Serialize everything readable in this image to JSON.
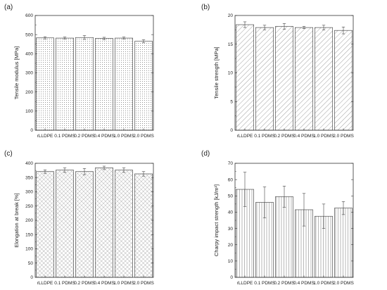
{
  "chart_data": [
    {
      "panel_label": "(a)",
      "type": "bar",
      "categories": [
        "rLLDPE",
        "0.1 PDMS",
        "0.2 PDMS",
        "0.4 PDMS",
        "1.0 PDMS",
        "2.0 PDMS"
      ],
      "values": [
        483,
        482,
        485,
        480,
        482,
        465
      ],
      "errors": [
        6,
        5,
        10,
        6,
        5,
        8
      ],
      "xlabel": "",
      "ylabel": "Tensile modulus [MPa]",
      "ylim": [
        0,
        600
      ],
      "yticks": [
        0,
        100,
        200,
        300,
        400,
        500,
        600
      ],
      "fill_pattern": "dots"
    },
    {
      "panel_label": "(b)",
      "type": "bar",
      "categories": [
        "rLLDPE",
        "0.1 PDMS",
        "0.2 PDMS",
        "0.4 PDMS",
        "1.0 PDMS",
        "2.0 PDMS"
      ],
      "values": [
        18.4,
        17.9,
        18.1,
        17.9,
        17.9,
        17.4
      ],
      "errors": [
        0.5,
        0.4,
        0.5,
        0.2,
        0.4,
        0.6
      ],
      "xlabel": "",
      "ylabel": "Tensile strength [MPa]",
      "ylim": [
        0,
        20
      ],
      "yticks": [
        0,
        5,
        10,
        15,
        20
      ],
      "fill_pattern": "diagonal"
    },
    {
      "panel_label": "(c)",
      "type": "bar",
      "categories": [
        "rLLDPE",
        "0.1 PDMS",
        "0.2 PDMS",
        "0.4 PDMS",
        "1.0 PDMS",
        "2.0 PDMS"
      ],
      "values": [
        371,
        376,
        371,
        384,
        376,
        363
      ],
      "errors": [
        6,
        8,
        11,
        6,
        8,
        8
      ],
      "xlabel": "",
      "ylabel": "Elongation at break [%]",
      "ylim": [
        0,
        400
      ],
      "yticks": [
        0,
        50,
        100,
        150,
        200,
        250,
        300,
        350,
        400
      ],
      "fill_pattern": "crosshatch"
    },
    {
      "panel_label": "(d)",
      "type": "bar",
      "categories": [
        "rLLDPE",
        "0.1 PDMS",
        "0.2 PDMS",
        "0.4 PDMS",
        "1.0 PDMS",
        "2.0 PDMS"
      ],
      "values": [
        54,
        46,
        49.5,
        41.5,
        37.5,
        42.5
      ],
      "errors": [
        10.5,
        9.5,
        6.5,
        10,
        7.5,
        4
      ],
      "xlabel": "",
      "ylabel": "Charpy impact strength [kJ/m²]",
      "ylim": [
        0,
        70
      ],
      "yticks": [
        0,
        10,
        20,
        30,
        40,
        50,
        60,
        70
      ],
      "fill_pattern": "vertical"
    }
  ]
}
